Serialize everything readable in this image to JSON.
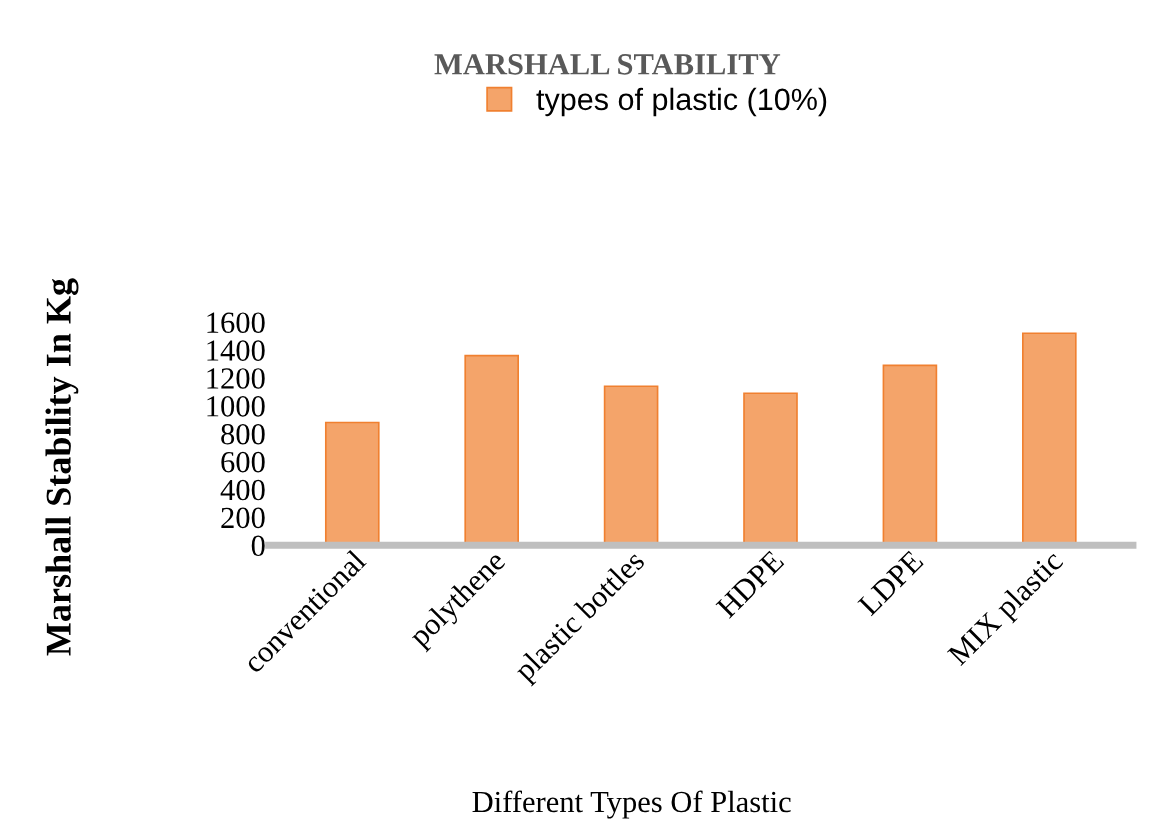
{
  "chart_data": {
    "type": "bar",
    "title": "MARSHALL STABILITY",
    "xlabel": "Different Types Of Plastic",
    "ylabel": "Marshall Stability In Kg",
    "categories": [
      "conventional",
      "polythene",
      "plastic bottles",
      "HDPE",
      "LDPE",
      "MIX plastic"
    ],
    "series": [
      {
        "name": "types of plastic (10%)",
        "color": "#f4a46a",
        "values": [
          880,
          1360,
          1140,
          1090,
          1290,
          1520
        ]
      }
    ],
    "ylim": [
      0,
      1600
    ],
    "yticks": [
      0,
      200,
      400,
      600,
      800,
      1000,
      1200,
      1400,
      1600
    ],
    "grid": false,
    "legend": "top"
  }
}
